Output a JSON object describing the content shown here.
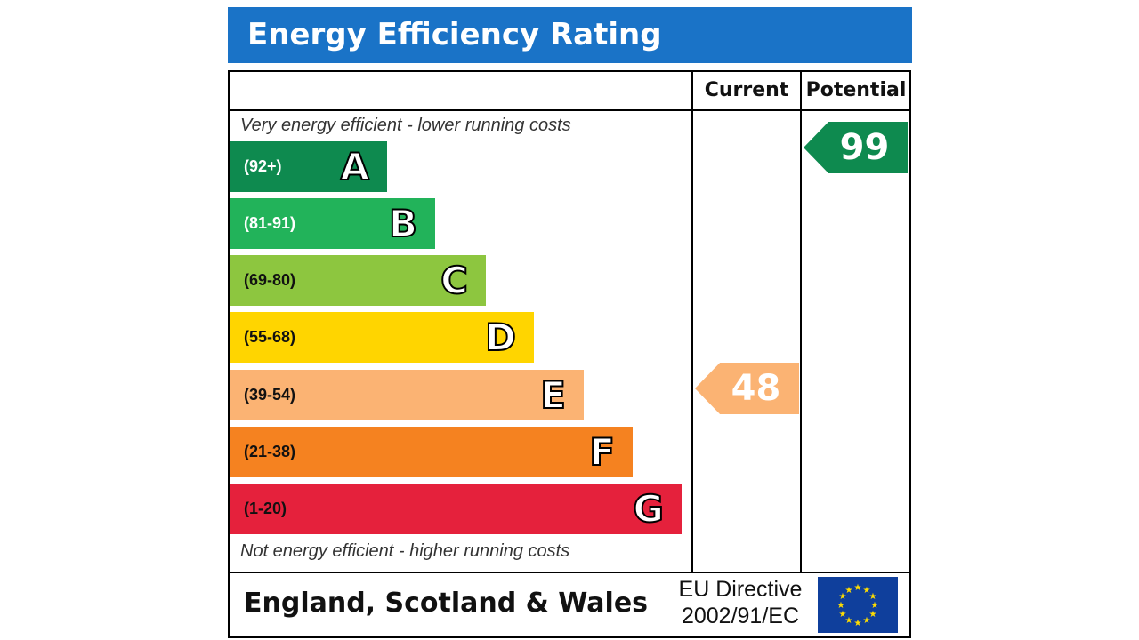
{
  "header": {
    "title": "Energy Efficiency Rating"
  },
  "columns": {
    "current": "Current",
    "potential": "Potential"
  },
  "notes": {
    "top": "Very energy efficient - lower running costs",
    "bottom": "Not energy efficient - higher running costs"
  },
  "footer": {
    "country": "England, Scotland & Wales",
    "directive_line1": "EU Directive",
    "directive_line2": "2002/91/EC"
  },
  "chart_data": {
    "type": "bar",
    "title": "Energy Efficiency Rating",
    "bands": [
      {
        "range": "(92+)",
        "letter": "A",
        "color": "#0e8a4f",
        "text_color": "#ffffff"
      },
      {
        "range": "(81-91)",
        "letter": "B",
        "color": "#22b35a",
        "text_color": "#ffffff"
      },
      {
        "range": "(69-80)",
        "letter": "C",
        "color": "#8dc63f",
        "text_color": "#111111"
      },
      {
        "range": "(55-68)",
        "letter": "D",
        "color": "#ffd500",
        "text_color": "#111111"
      },
      {
        "range": "(39-54)",
        "letter": "E",
        "color": "#fbb373",
        "text_color": "#111111"
      },
      {
        "range": "(21-38)",
        "letter": "F",
        "color": "#f58220",
        "text_color": "#111111"
      },
      {
        "range": "(1-20)",
        "letter": "G",
        "color": "#e5213c",
        "text_color": "#111111"
      }
    ],
    "current": {
      "value": "48",
      "band": "E",
      "color": "#fbb373"
    },
    "potential": {
      "value": "99",
      "band": "A",
      "color": "#0e8a4f"
    }
  }
}
